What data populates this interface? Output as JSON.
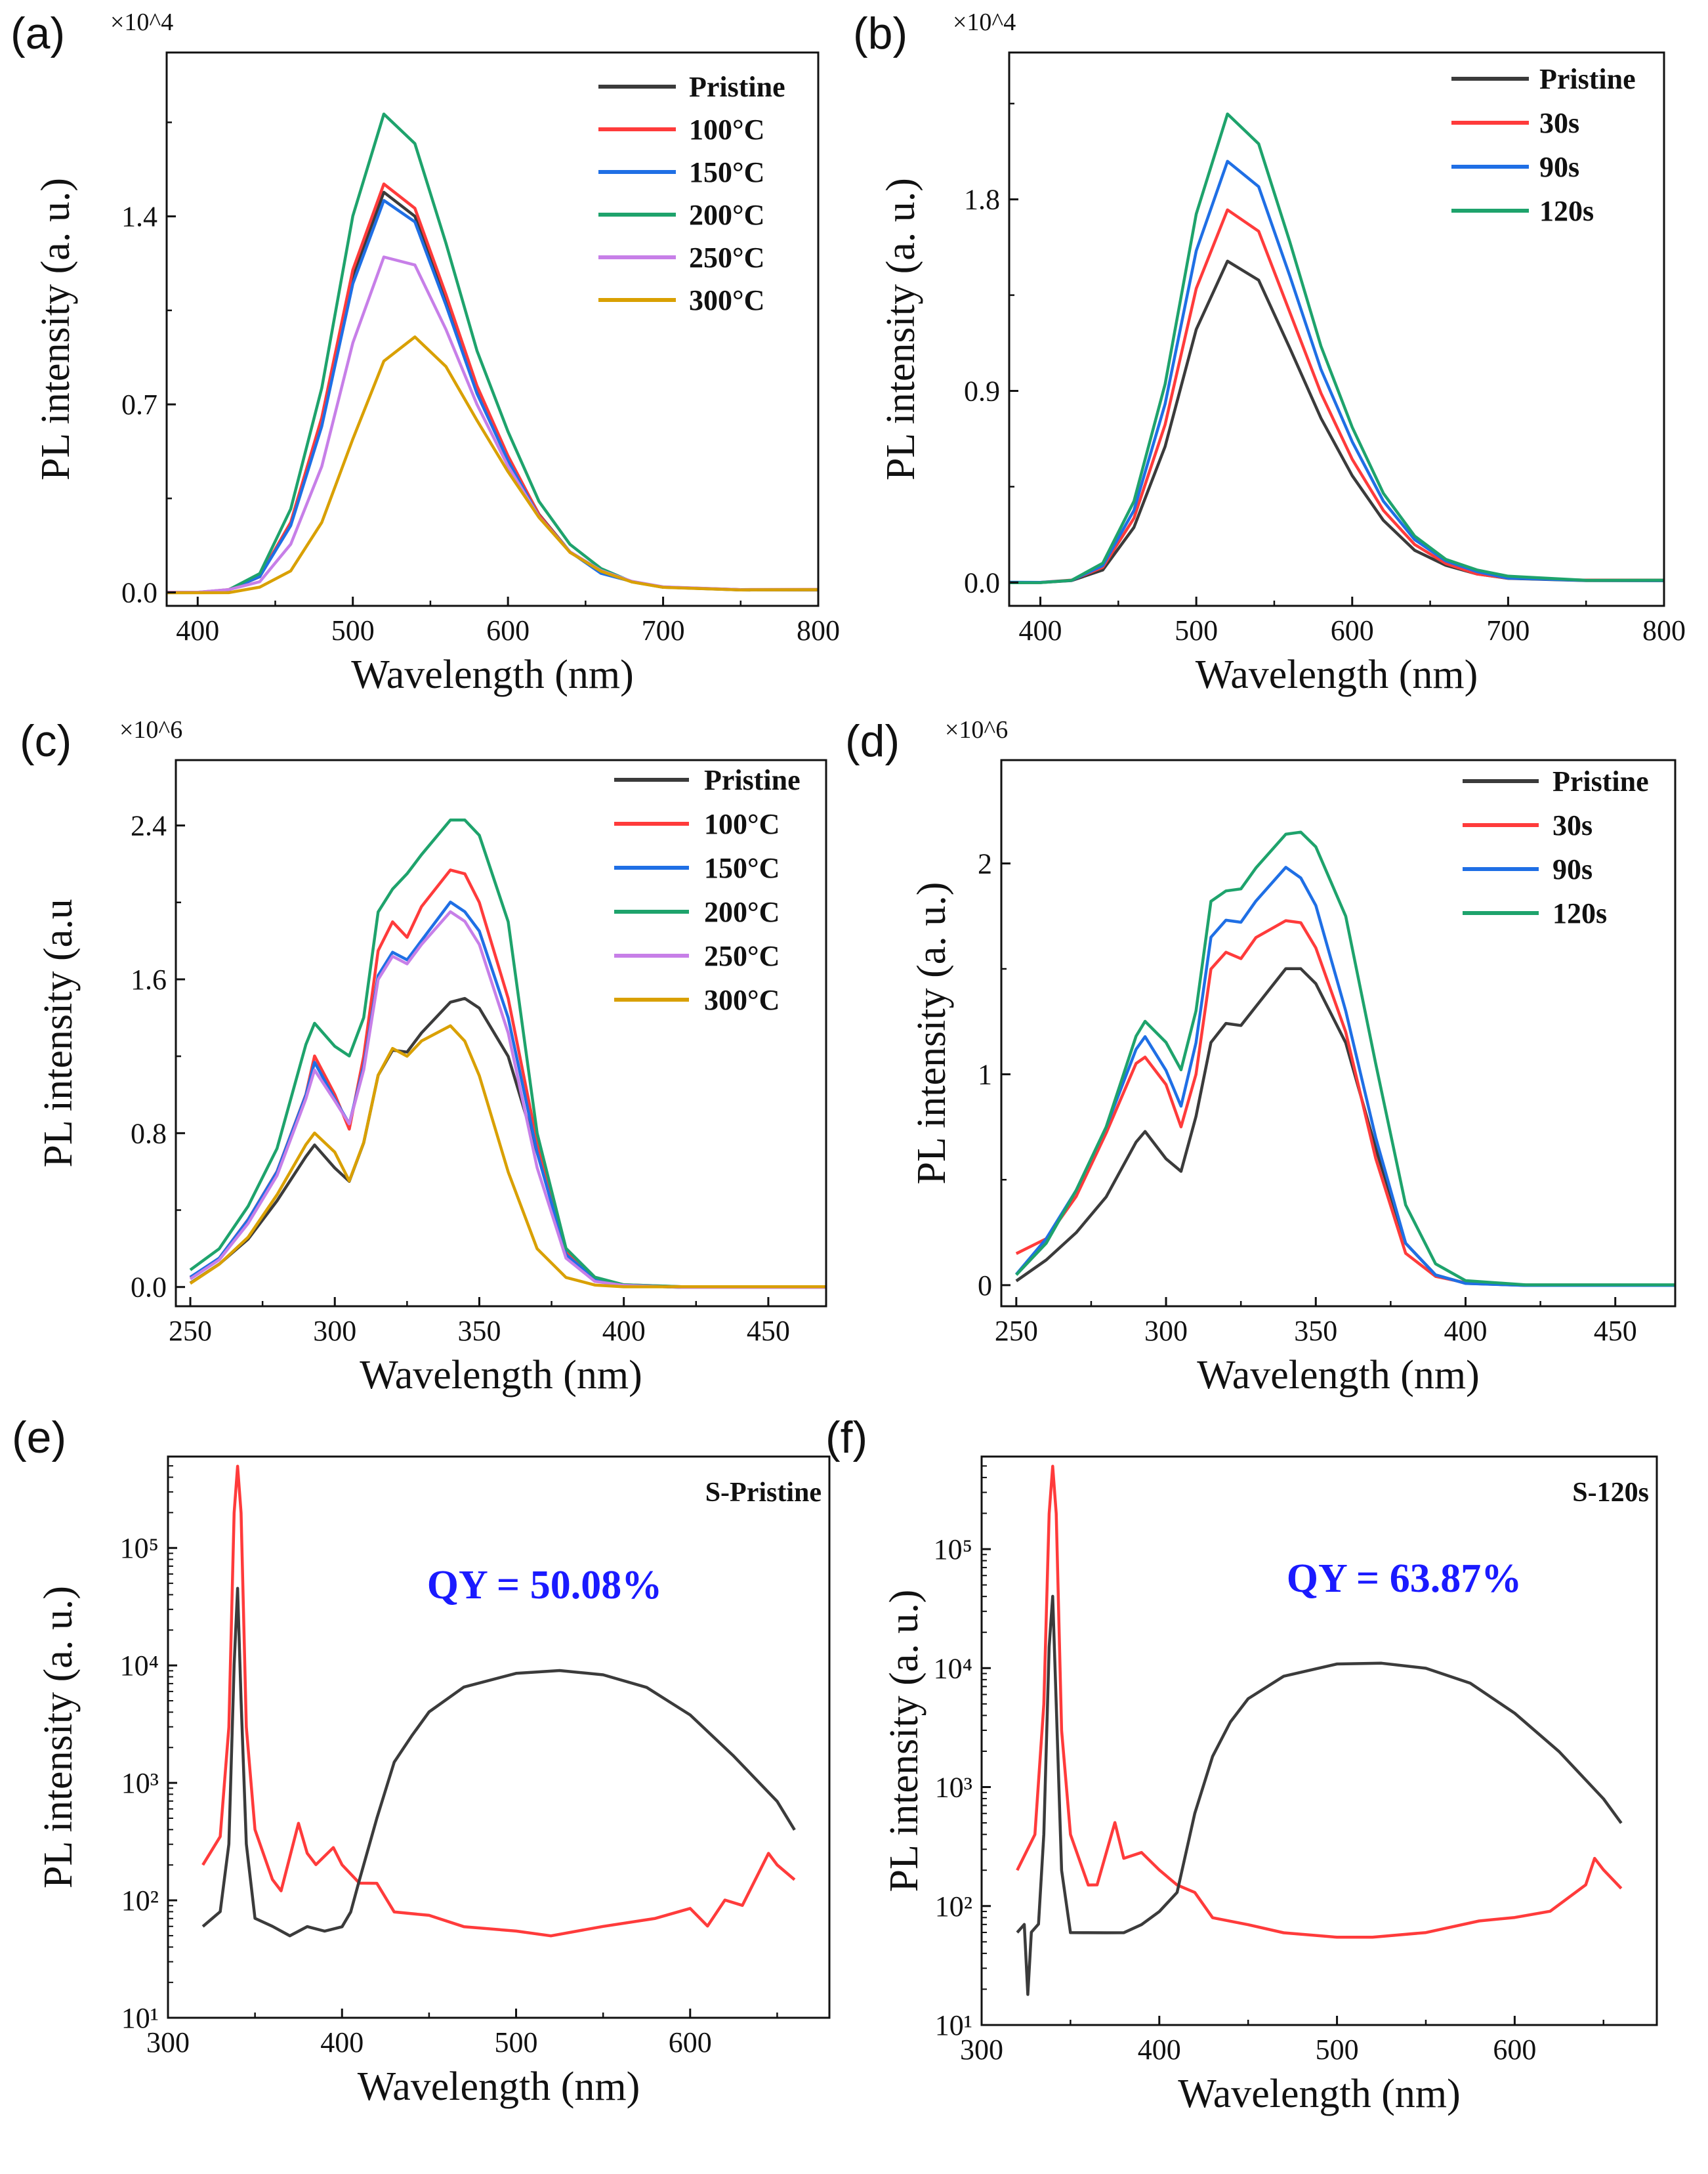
{
  "colors": {
    "black": "#3b3b3b",
    "red": "#ff3b3b",
    "blue": "#1f6fe5",
    "green": "#1ea36c",
    "purple": "#c77fe8",
    "orange": "#d9a000"
  },
  "chart_data": [
    {
      "panel": "(a)",
      "type": "line",
      "multiplier": "×10^4",
      "xlabel": "Wavelength (nm)",
      "ylabel": "PL intensity (a. u.)",
      "xlim": [
        380,
        800
      ],
      "ylim": [
        -0.05,
        2.01
      ],
      "yscale": "linear",
      "xticks": [
        400,
        500,
        600,
        700,
        800
      ],
      "xtick_labels": [
        "400",
        "500",
        "600",
        "700",
        "800"
      ],
      "yticks": [
        0.0,
        0.7,
        1.4
      ],
      "ytick_labels": [
        "0.0",
        "0.7",
        "1.4"
      ],
      "legend": "top-right",
      "x": [
        380,
        400,
        420,
        440,
        460,
        480,
        500,
        520,
        540,
        560,
        580,
        600,
        620,
        640,
        660,
        680,
        700,
        750,
        800
      ],
      "series": [
        {
          "name": "Pristine",
          "color": "black",
          "values": [
            0,
            0,
            0.01,
            0.06,
            0.26,
            0.63,
            1.18,
            1.49,
            1.4,
            1.09,
            0.76,
            0.5,
            0.29,
            0.15,
            0.08,
            0.04,
            0.02,
            0.01,
            0.01
          ]
        },
        {
          "name": "100°C",
          "color": "red",
          "values": [
            0,
            0,
            0.01,
            0.06,
            0.26,
            0.65,
            1.2,
            1.52,
            1.43,
            1.11,
            0.77,
            0.51,
            0.29,
            0.15,
            0.08,
            0.04,
            0.02,
            0.01,
            0.01
          ]
        },
        {
          "name": "150°C",
          "color": "blue",
          "values": [
            0,
            0,
            0.01,
            0.06,
            0.25,
            0.62,
            1.15,
            1.46,
            1.38,
            1.07,
            0.74,
            0.49,
            0.28,
            0.15,
            0.07,
            0.04,
            0.02,
            0.01,
            0.01
          ]
        },
        {
          "name": "200°C",
          "color": "green",
          "values": [
            0,
            0,
            0.01,
            0.07,
            0.31,
            0.76,
            1.4,
            1.78,
            1.67,
            1.3,
            0.9,
            0.6,
            0.34,
            0.18,
            0.09,
            0.04,
            0.02,
            0.01,
            0.01
          ]
        },
        {
          "name": "250°C",
          "color": "purple",
          "values": [
            0,
            0,
            0.01,
            0.04,
            0.18,
            0.47,
            0.93,
            1.25,
            1.22,
            0.98,
            0.7,
            0.47,
            0.28,
            0.15,
            0.08,
            0.04,
            0.02,
            0.01,
            0.01
          ]
        },
        {
          "name": "300°C",
          "color": "orange",
          "values": [
            0,
            0,
            0,
            0.02,
            0.08,
            0.26,
            0.57,
            0.86,
            0.95,
            0.84,
            0.64,
            0.45,
            0.28,
            0.15,
            0.08,
            0.04,
            0.02,
            0.01,
            0.01
          ]
        }
      ]
    },
    {
      "panel": "(b)",
      "type": "line",
      "multiplier": "×10^4",
      "xlabel": "Wavelength (nm)",
      "ylabel": "PL intensity (a. u.)",
      "xlim": [
        380,
        800
      ],
      "ylim": [
        -0.11,
        2.49
      ],
      "yscale": "linear",
      "xticks": [
        400,
        500,
        600,
        700,
        800
      ],
      "xtick_labels": [
        "400",
        "500",
        "600",
        "700",
        "800"
      ],
      "yticks": [
        0.0,
        0.9,
        1.8
      ],
      "ytick_labels": [
        "0.0",
        "0.9",
        "1.8"
      ],
      "legend": "top-right",
      "x": [
        380,
        400,
        420,
        440,
        460,
        480,
        500,
        520,
        540,
        560,
        580,
        600,
        620,
        640,
        660,
        680,
        700,
        750,
        800
      ],
      "series": [
        {
          "name": "Pristine",
          "color": "black",
          "values": [
            0,
            0,
            0.01,
            0.06,
            0.26,
            0.64,
            1.19,
            1.51,
            1.42,
            1.1,
            0.77,
            0.5,
            0.29,
            0.15,
            0.08,
            0.04,
            0.02,
            0.01,
            0.01
          ]
        },
        {
          "name": "30s",
          "color": "red",
          "values": [
            0,
            0,
            0.01,
            0.07,
            0.3,
            0.74,
            1.38,
            1.75,
            1.65,
            1.27,
            0.89,
            0.58,
            0.34,
            0.18,
            0.09,
            0.04,
            0.02,
            0.01,
            0.01
          ]
        },
        {
          "name": "90s",
          "color": "blue",
          "values": [
            0,
            0,
            0.01,
            0.08,
            0.34,
            0.84,
            1.56,
            1.98,
            1.86,
            1.44,
            1.0,
            0.66,
            0.38,
            0.2,
            0.1,
            0.05,
            0.02,
            0.01,
            0.01
          ]
        },
        {
          "name": "120s",
          "color": "green",
          "values": [
            0,
            0,
            0.01,
            0.09,
            0.38,
            0.93,
            1.73,
            2.2,
            2.06,
            1.6,
            1.11,
            0.73,
            0.42,
            0.22,
            0.11,
            0.06,
            0.03,
            0.01,
            0.01
          ]
        }
      ]
    },
    {
      "panel": "(c)",
      "type": "line",
      "multiplier": "×10^6",
      "xlabel": "Wavelength (nm)",
      "ylabel": "PL intensity (a.u",
      "xlim": [
        245,
        470
      ],
      "ylim": [
        -0.1,
        2.74
      ],
      "yscale": "linear",
      "xticks": [
        250,
        300,
        350,
        400,
        450
      ],
      "xtick_labels": [
        "250",
        "300",
        "350",
        "400",
        "450"
      ],
      "yticks": [
        0.0,
        0.8,
        1.6,
        2.4
      ],
      "ytick_labels": [
        "0.0",
        "0.8",
        "1.6",
        "2.4"
      ],
      "legend": "top-right",
      "x": [
        250,
        260,
        270,
        280,
        290,
        293,
        300,
        305,
        310,
        315,
        320,
        325,
        330,
        340,
        345,
        350,
        360,
        370,
        380,
        390,
        400,
        420,
        470
      ],
      "series": [
        {
          "name": "Pristine",
          "color": "black",
          "values": [
            0.02,
            0.12,
            0.25,
            0.45,
            0.68,
            0.74,
            0.62,
            0.55,
            0.75,
            1.1,
            1.23,
            1.22,
            1.32,
            1.48,
            1.5,
            1.45,
            1.2,
            0.7,
            0.2,
            0.05,
            0.01,
            0,
            0
          ]
        },
        {
          "name": "100°C",
          "color": "red",
          "values": [
            0.05,
            0.15,
            0.35,
            0.6,
            1.0,
            1.2,
            1.0,
            0.82,
            1.2,
            1.75,
            1.9,
            1.82,
            1.98,
            2.17,
            2.15,
            2.0,
            1.5,
            0.75,
            0.18,
            0.04,
            0.01,
            0,
            0
          ]
        },
        {
          "name": "150°C",
          "color": "blue",
          "values": [
            0.05,
            0.15,
            0.35,
            0.6,
            1.0,
            1.17,
            0.98,
            0.85,
            1.15,
            1.62,
            1.74,
            1.7,
            1.8,
            2.0,
            1.95,
            1.85,
            1.4,
            0.7,
            0.17,
            0.04,
            0.01,
            0,
            0
          ]
        },
        {
          "name": "200°C",
          "color": "green",
          "values": [
            0.09,
            0.2,
            0.42,
            0.72,
            1.26,
            1.37,
            1.25,
            1.2,
            1.4,
            1.95,
            2.07,
            2.15,
            2.25,
            2.43,
            2.43,
            2.35,
            1.9,
            0.8,
            0.2,
            0.05,
            0.01,
            0,
            0
          ]
        },
        {
          "name": "250°C",
          "color": "purple",
          "values": [
            0.04,
            0.14,
            0.33,
            0.58,
            0.98,
            1.13,
            0.97,
            0.85,
            1.13,
            1.6,
            1.72,
            1.68,
            1.78,
            1.95,
            1.9,
            1.78,
            1.32,
            0.62,
            0.15,
            0.03,
            0.01,
            0,
            0
          ]
        },
        {
          "name": "300°C",
          "color": "orange",
          "values": [
            0.02,
            0.12,
            0.26,
            0.48,
            0.74,
            0.8,
            0.7,
            0.55,
            0.75,
            1.1,
            1.24,
            1.2,
            1.28,
            1.36,
            1.28,
            1.1,
            0.6,
            0.2,
            0.05,
            0.01,
            0,
            0,
            0
          ]
        }
      ]
    },
    {
      "panel": "(d)",
      "type": "line",
      "multiplier": "×10^6",
      "xlabel": "Wavelength (nm)",
      "ylabel": "PL intensity (a. u.)",
      "xlim": [
        245,
        470
      ],
      "ylim": [
        -0.1,
        2.49
      ],
      "yscale": "linear",
      "xticks": [
        250,
        300,
        350,
        400,
        450
      ],
      "xtick_labels": [
        "250",
        "300",
        "350",
        "400",
        "450"
      ],
      "yticks": [
        0,
        1,
        2
      ],
      "ytick_labels": [
        "0",
        "1",
        "2"
      ],
      "legend": "top-right",
      "x": [
        250,
        260,
        270,
        280,
        290,
        293,
        300,
        305,
        310,
        315,
        320,
        325,
        330,
        340,
        345,
        350,
        360,
        370,
        380,
        390,
        400,
        420,
        470
      ],
      "series": [
        {
          "name": "Pristine",
          "color": "black",
          "values": [
            0.02,
            0.12,
            0.25,
            0.42,
            0.68,
            0.73,
            0.6,
            0.54,
            0.8,
            1.15,
            1.24,
            1.23,
            1.32,
            1.5,
            1.5,
            1.43,
            1.15,
            0.65,
            0.2,
            0.05,
            0.01,
            0,
            0
          ]
        },
        {
          "name": "30s",
          "color": "red",
          "values": [
            0.15,
            0.22,
            0.42,
            0.72,
            1.05,
            1.08,
            0.95,
            0.75,
            1.0,
            1.5,
            1.58,
            1.55,
            1.65,
            1.73,
            1.72,
            1.6,
            1.2,
            0.6,
            0.15,
            0.04,
            0.01,
            0,
            0
          ]
        },
        {
          "name": "90s",
          "color": "blue",
          "values": [
            0.05,
            0.22,
            0.45,
            0.75,
            1.12,
            1.18,
            1.02,
            0.85,
            1.15,
            1.65,
            1.73,
            1.72,
            1.82,
            1.98,
            1.93,
            1.8,
            1.3,
            0.7,
            0.2,
            0.05,
            0.01,
            0,
            0
          ]
        },
        {
          "name": "120s",
          "color": "green",
          "values": [
            0.05,
            0.2,
            0.45,
            0.75,
            1.18,
            1.25,
            1.15,
            1.02,
            1.3,
            1.82,
            1.87,
            1.88,
            1.98,
            2.14,
            2.15,
            2.08,
            1.75,
            1.05,
            0.38,
            0.1,
            0.02,
            0,
            0
          ]
        }
      ]
    },
    {
      "panel": "(e)",
      "type": "line",
      "xlabel": "Wavelength (nm)",
      "ylabel": "PL intensity (a. u.)",
      "xlim": [
        300,
        680
      ],
      "ylim": [
        10,
        600000
      ],
      "yscale": "log",
      "xticks": [
        300,
        400,
        500,
        600
      ],
      "xtick_labels": [
        "300",
        "400",
        "500",
        "600"
      ],
      "yticks": [
        10,
        100,
        1000,
        10000,
        100000
      ],
      "ytick_labels": [
        "10¹",
        "10²",
        "10³",
        "10⁴",
        "10⁵"
      ],
      "tag": "S-Pristine",
      "annotation": "QY = 50.08%",
      "annotation_color": "#1a1aff",
      "series": [
        {
          "color": "red",
          "x": [
            320,
            330,
            335,
            338,
            340,
            342,
            345,
            350,
            360,
            365,
            375,
            380,
            385,
            395,
            400,
            410,
            420,
            430,
            450,
            470,
            500,
            520,
            550,
            580,
            600,
            610,
            620,
            630,
            645,
            650,
            660
          ],
          "values": [
            200,
            350,
            3000,
            200000,
            500000,
            200000,
            3000,
            400,
            150,
            120,
            450,
            250,
            200,
            280,
            200,
            140,
            140,
            80,
            75,
            60,
            55,
            50,
            60,
            70,
            85,
            60,
            100,
            90,
            250,
            200,
            150
          ]
        },
        {
          "color": "black",
          "x": [
            320,
            330,
            335,
            338,
            340,
            342,
            345,
            350,
            360,
            370,
            380,
            390,
            400,
            405,
            410,
            420,
            430,
            440,
            450,
            470,
            500,
            525,
            550,
            575,
            600,
            625,
            650,
            660
          ],
          "values": [
            60,
            80,
            300,
            10000,
            45000,
            5000,
            300,
            70,
            60,
            50,
            60,
            55,
            60,
            80,
            150,
            500,
            1500,
            2500,
            4000,
            6500,
            8500,
            9000,
            8300,
            6500,
            3800,
            1700,
            700,
            400
          ]
        }
      ]
    },
    {
      "panel": "(f)",
      "type": "line",
      "xlabel": "Wavelength (nm)",
      "ylabel": "PL intensity (a. u.)",
      "xlim": [
        300,
        680
      ],
      "ylim": [
        10,
        600000
      ],
      "yscale": "log",
      "xticks": [
        300,
        400,
        500,
        600
      ],
      "xtick_labels": [
        "300",
        "400",
        "500",
        "600"
      ],
      "yticks": [
        10,
        100,
        1000,
        10000,
        100000
      ],
      "ytick_labels": [
        "10¹",
        "10²",
        "10³",
        "10⁴",
        "10⁵"
      ],
      "tag": "S-120s",
      "annotation": "QY = 63.87%",
      "annotation_color": "#1a1aff",
      "series": [
        {
          "color": "red",
          "x": [
            320,
            330,
            335,
            338,
            340,
            342,
            345,
            350,
            360,
            365,
            375,
            380,
            390,
            400,
            410,
            420,
            430,
            450,
            470,
            500,
            520,
            550,
            580,
            600,
            620,
            640,
            645,
            650,
            660
          ],
          "values": [
            200,
            400,
            5000,
            200000,
            500000,
            200000,
            3000,
            400,
            150,
            150,
            500,
            250,
            280,
            200,
            150,
            130,
            80,
            70,
            60,
            55,
            55,
            60,
            75,
            80,
            90,
            150,
            250,
            200,
            140
          ]
        },
        {
          "color": "black",
          "x": [
            320,
            324,
            326,
            328,
            332,
            335,
            338,
            340,
            342,
            345,
            350,
            360,
            370,
            380,
            390,
            400,
            410,
            420,
            430,
            440,
            450,
            470,
            500,
            525,
            550,
            575,
            600,
            625,
            650,
            660
          ],
          "values": [
            60,
            70,
            18,
            60,
            70,
            400,
            15000,
            40000,
            5000,
            200,
            60,
            60,
            60,
            60,
            70,
            90,
            130,
            600,
            1800,
            3500,
            5500,
            8500,
            10800,
            11000,
            10000,
            7500,
            4200,
            2000,
            800,
            500
          ]
        }
      ]
    }
  ]
}
